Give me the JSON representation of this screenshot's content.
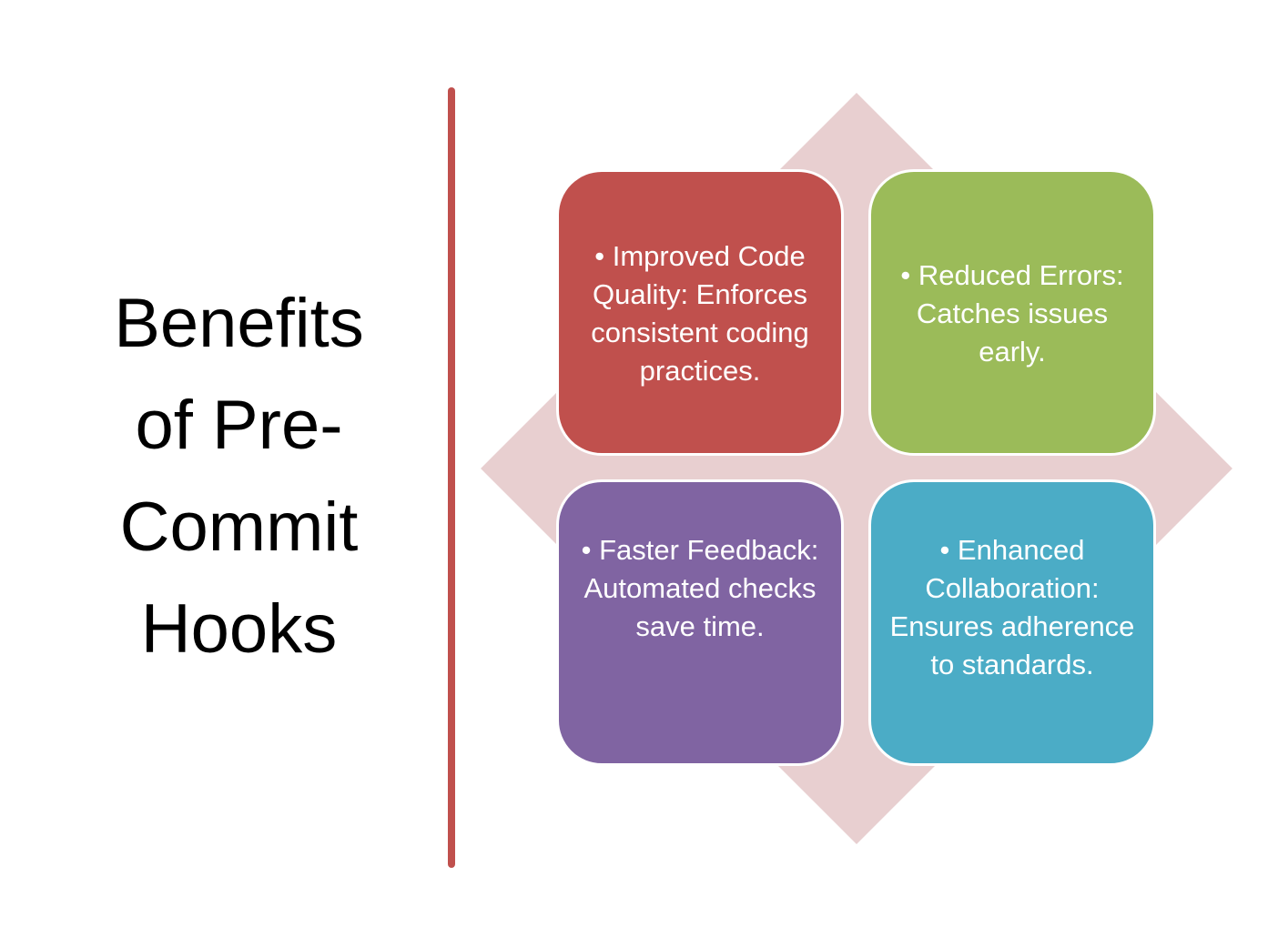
{
  "title": "Benefits\nof Pre-\nCommit\nHooks",
  "colors": {
    "divider": "#c0504d",
    "diamond": "#e8cfd0",
    "box1": "#c0504d",
    "box2": "#9bbb59",
    "box3": "#8064a2",
    "box4": "#4bacc6"
  },
  "benefits": [
    {
      "text": "• Improved Code Quality: Enforces consistent coding practices."
    },
    {
      "text": "• Reduced Errors: Catches issues early."
    },
    {
      "text": "• Faster Feedback: Automated checks save time."
    },
    {
      "text": "• Enhanced Collaboration: Ensures adherence to standards."
    }
  ]
}
